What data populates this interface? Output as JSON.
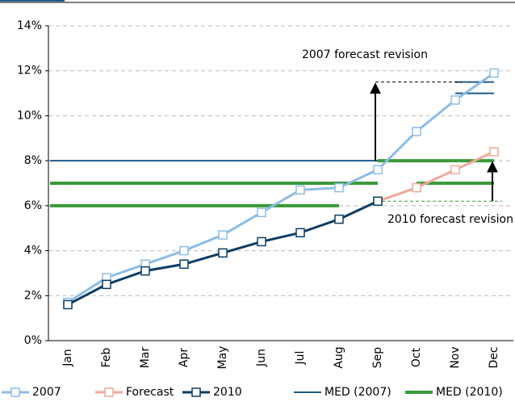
{
  "chart_data": {
    "type": "line",
    "categories": [
      "Jan",
      "Feb",
      "Mar",
      "Apr",
      "May",
      "Jun",
      "Jul",
      "Aug",
      "Sep",
      "Oct",
      "Nov",
      "Dec"
    ],
    "series": [
      {
        "name": "2007",
        "color": "#8cbde6",
        "values": [
          1.7,
          2.8,
          3.4,
          4.0,
          4.7,
          5.7,
          6.7,
          6.8,
          7.6,
          9.3,
          10.7,
          11.9
        ]
      },
      {
        "name": "Forecast",
        "color": "#f0a898",
        "values": [
          null,
          null,
          null,
          null,
          null,
          null,
          null,
          null,
          6.2,
          6.8,
          7.6,
          8.4
        ]
      },
      {
        "name": "2010",
        "color": "#0b3d66",
        "values": [
          1.6,
          2.5,
          3.1,
          3.4,
          3.9,
          4.4,
          4.8,
          5.4,
          6.2,
          null,
          null,
          null
        ]
      }
    ],
    "med_series": [
      {
        "name": "MED (2007)",
        "color": "#1d5a8a",
        "segments": [
          {
            "from": "Jan",
            "to": "Oct",
            "value": 8
          },
          {
            "from": "Jan",
            "to": "Sep",
            "value": 7
          },
          {
            "from": "Nov",
            "to": "Dec",
            "value": 11
          },
          {
            "from": "Nov",
            "to": "Dec",
            "value": 11.5
          }
        ]
      },
      {
        "name": "MED (2010)",
        "color": "#3a9a3a",
        "segments": [
          {
            "from": "Jan",
            "to": "Sep",
            "value": 7
          },
          {
            "from": "Jan",
            "to": "Aug",
            "value": 6
          },
          {
            "from": "Sep",
            "to": "Dec",
            "value": 8
          },
          {
            "from": "Oct",
            "to": "Dec",
            "value": 7
          }
        ]
      }
    ],
    "annotations": [
      {
        "text": "2007 forecast revision",
        "from": 8,
        "to": 11.5
      },
      {
        "text": "2010 forecast revision",
        "from": 6.2,
        "to": 8
      }
    ],
    "ylim": [
      0,
      14
    ],
    "yticks": [
      {
        "value": 0,
        "label": "0%"
      },
      {
        "value": 2,
        "label": "2%"
      },
      {
        "value": 4,
        "label": "4%"
      },
      {
        "value": 6,
        "label": "6%"
      },
      {
        "value": 8,
        "label": "8%"
      },
      {
        "value": 10,
        "label": "10%"
      },
      {
        "value": 12,
        "label": "12%"
      },
      {
        "value": 14,
        "label": "14%"
      }
    ],
    "grid": true
  }
}
